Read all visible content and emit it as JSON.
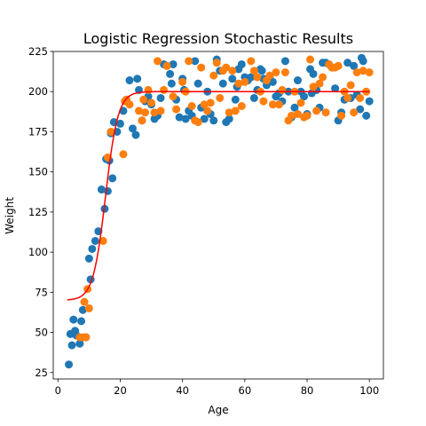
{
  "chart_data": {
    "type": "scatter",
    "title": "Logistic Regression Stochastic Results",
    "xlabel": "Age",
    "ylabel": "Weight",
    "xlim": [
      -1.5,
      104.5
    ],
    "ylim": [
      21,
      225
    ],
    "xticks": [
      0,
      20,
      40,
      60,
      80,
      100
    ],
    "yticks": [
      25,
      50,
      75,
      100,
      125,
      150,
      175,
      200,
      225
    ],
    "grid": false,
    "legend": "none",
    "colors": {
      "series_a": "#1f77b4",
      "series_b": "#ff7f0e",
      "curve": "#ff0000"
    },
    "series": [
      {
        "kind": "scatter",
        "color": "#1f77b4",
        "points": [
          [
            3.5,
            30
          ],
          [
            4,
            49
          ],
          [
            4.5,
            42
          ],
          [
            5,
            58
          ],
          [
            5.5,
            51
          ],
          [
            6,
            48
          ],
          [
            7,
            43
          ],
          [
            7.5,
            57
          ],
          [
            8,
            64
          ],
          [
            9,
            47
          ],
          [
            10,
            96
          ],
          [
            10.5,
            83
          ],
          [
            11,
            102
          ],
          [
            12,
            107
          ],
          [
            13,
            113
          ],
          [
            14,
            139
          ],
          [
            15,
            127
          ],
          [
            15.5,
            158
          ],
          [
            16,
            138
          ],
          [
            16.5,
            157
          ],
          [
            17,
            174
          ],
          [
            17.5,
            146
          ],
          [
            18,
            181
          ],
          [
            19,
            175
          ],
          [
            20,
            180
          ],
          [
            21,
            188
          ],
          [
            22,
            195
          ],
          [
            23,
            207
          ],
          [
            24,
            177
          ],
          [
            25,
            173
          ],
          [
            25.5,
            208
          ],
          [
            26,
            201
          ],
          [
            27,
            182
          ],
          [
            28,
            194
          ],
          [
            29,
            197
          ],
          [
            30,
            192
          ],
          [
            31,
            183
          ],
          [
            32,
            185
          ],
          [
            33,
            196
          ],
          [
            34,
            217
          ],
          [
            35,
            216
          ],
          [
            36,
            211
          ],
          [
            36.5,
            205
          ],
          [
            37,
            217
          ],
          [
            38,
            195
          ],
          [
            39,
            184
          ],
          [
            40,
            208
          ],
          [
            40.5,
            201
          ],
          [
            41,
            183
          ],
          [
            42,
            188
          ],
          [
            43,
            185
          ],
          [
            44,
            219
          ],
          [
            45,
            205
          ],
          [
            46,
            190
          ],
          [
            47,
            183
          ],
          [
            48,
            200
          ],
          [
            49,
            186
          ],
          [
            50,
            182
          ],
          [
            51,
            220
          ],
          [
            52,
            213
          ],
          [
            53,
            205
          ],
          [
            54,
            181
          ],
          [
            55,
            183
          ],
          [
            56,
            208
          ],
          [
            57,
            195
          ],
          [
            57.5,
            203
          ],
          [
            58,
            214
          ],
          [
            59,
            217
          ],
          [
            60,
            209
          ],
          [
            61,
            207
          ],
          [
            62,
            209
          ],
          [
            63,
            196
          ],
          [
            64,
            201
          ],
          [
            65,
            214
          ],
          [
            65.5,
            213
          ],
          [
            66,
            208
          ],
          [
            67,
            204
          ],
          [
            68,
            209
          ],
          [
            69,
            206
          ],
          [
            70,
            197
          ],
          [
            71,
            199
          ],
          [
            72,
            194
          ],
          [
            73,
            219
          ],
          [
            74,
            200
          ],
          [
            75,
            184
          ],
          [
            76,
            190
          ],
          [
            77,
            207
          ],
          [
            78,
            200
          ],
          [
            79,
            197
          ],
          [
            80,
            186
          ],
          [
            81,
            214
          ],
          [
            81.5,
            199
          ],
          [
            82,
            211
          ],
          [
            83,
            201
          ],
          [
            84,
            190
          ],
          [
            85,
            218
          ],
          [
            86,
            218
          ],
          [
            87,
            217
          ],
          [
            88,
            215
          ],
          [
            89,
            202
          ],
          [
            90,
            182
          ],
          [
            91,
            187
          ],
          [
            92,
            195
          ],
          [
            93,
            218
          ],
          [
            94,
            196
          ],
          [
            95,
            216
          ],
          [
            96,
            198
          ],
          [
            97,
            189
          ],
          [
            97.5,
            221
          ],
          [
            98,
            219
          ],
          [
            99,
            185
          ],
          [
            100,
            194
          ]
        ]
      },
      {
        "kind": "scatter",
        "color": "#ff7f0e",
        "points": [
          [
            7,
            47
          ],
          [
            8,
            47
          ],
          [
            8.5,
            69
          ],
          [
            9,
            47
          ],
          [
            9.5,
            77
          ],
          [
            10,
            65
          ],
          [
            14.5,
            107
          ],
          [
            16,
            159
          ],
          [
            17,
            175
          ],
          [
            21,
            161
          ],
          [
            21.5,
            194
          ],
          [
            22,
            195
          ],
          [
            23,
            192
          ],
          [
            26,
            188
          ],
          [
            27,
            182
          ],
          [
            27.5,
            195
          ],
          [
            28,
            187
          ],
          [
            29,
            201
          ],
          [
            30,
            193
          ],
          [
            31,
            187
          ],
          [
            32,
            219
          ],
          [
            33,
            188
          ],
          [
            34,
            201
          ],
          [
            35,
            216
          ],
          [
            37,
            197
          ],
          [
            38,
            189
          ],
          [
            40,
            206
          ],
          [
            41,
            200
          ],
          [
            42,
            219
          ],
          [
            43,
            191
          ],
          [
            44,
            182
          ],
          [
            45,
            181
          ],
          [
            46,
            215
          ],
          [
            47,
            192
          ],
          [
            48,
            188
          ],
          [
            49,
            193
          ],
          [
            50,
            210
          ],
          [
            51,
            218
          ],
          [
            52,
            196
          ],
          [
            53,
            213
          ],
          [
            54,
            215
          ],
          [
            55,
            187
          ],
          [
            56,
            213
          ],
          [
            57,
            188
          ],
          [
            58,
            205
          ],
          [
            59,
            191
          ],
          [
            60,
            206
          ],
          [
            62,
            219
          ],
          [
            63,
            213
          ],
          [
            64,
            209
          ],
          [
            65,
            200
          ],
          [
            66,
            194
          ],
          [
            67,
            207
          ],
          [
            68,
            210
          ],
          [
            69,
            192
          ],
          [
            70,
            212
          ],
          [
            71,
            192
          ],
          [
            72,
            201
          ],
          [
            73,
            212
          ],
          [
            74,
            182
          ],
          [
            75,
            185
          ],
          [
            76,
            200
          ],
          [
            77,
            186
          ],
          [
            78,
            193
          ],
          [
            79,
            184
          ],
          [
            80,
            185
          ],
          [
            81,
            220
          ],
          [
            82,
            203
          ],
          [
            83,
            188
          ],
          [
            84,
            205
          ],
          [
            85,
            209
          ],
          [
            86,
            187
          ],
          [
            87,
            217
          ],
          [
            88,
            215
          ],
          [
            89,
            215
          ],
          [
            90,
            216
          ],
          [
            91,
            185
          ],
          [
            92,
            200
          ],
          [
            93,
            196
          ],
          [
            94,
            204
          ],
          [
            95,
            187
          ],
          [
            96,
            212
          ],
          [
            97,
            196
          ],
          [
            98,
            213
          ],
          [
            99,
            200
          ],
          [
            100,
            212
          ]
        ]
      },
      {
        "kind": "line",
        "color": "#ff0000",
        "function": "logistic",
        "lower": 70,
        "upper": 200,
        "midpoint": 15.3,
        "scale": 2.0,
        "x_range": [
          3,
          100
        ]
      }
    ]
  }
}
